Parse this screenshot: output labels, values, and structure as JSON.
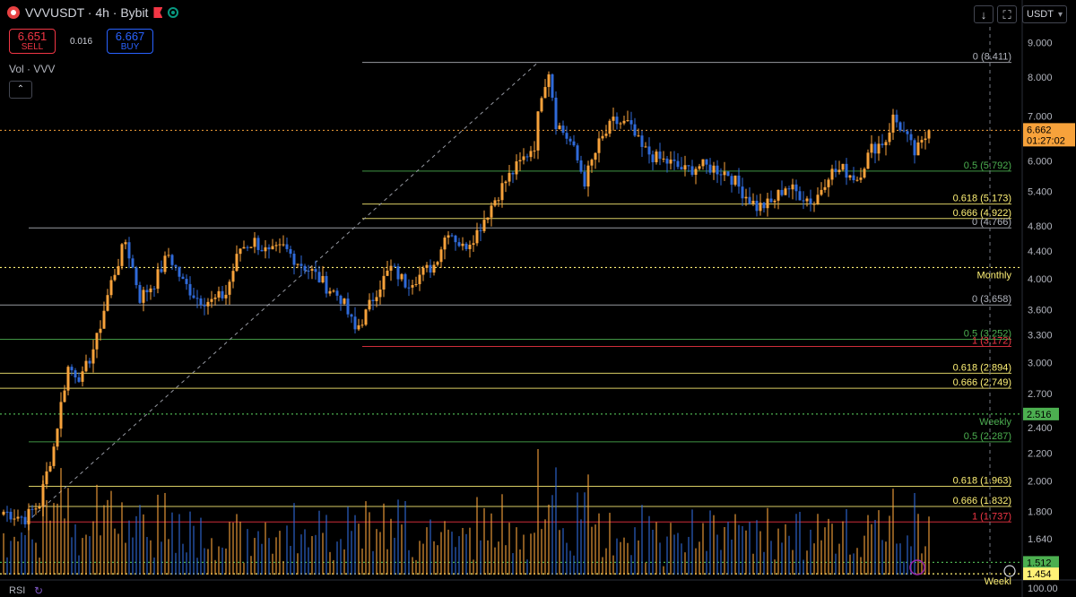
{
  "header": {
    "symbol": "VVVUSDT",
    "interval": "4h",
    "exchange": "Bybit",
    "title": "VVVUSDT · 4h · Bybit"
  },
  "trade": {
    "sell_price": "6.651",
    "sell_label": "SELL",
    "spread": "0.016",
    "buy_price": "6.667",
    "buy_label": "BUY"
  },
  "volume_label": "Vol · VVV",
  "collapse_glyph": "⌃",
  "toolbar": {
    "download_glyph": "↓",
    "fullscreen_glyph": "⛶",
    "currency": "USDT"
  },
  "rsi_label": "RSI",
  "colors": {
    "up": "#f7a23b",
    "down": "#2f6ad9",
    "bg": "#000000"
  },
  "chart_data": {
    "type": "candlestick",
    "log_scale": true,
    "y_range": [
      1.45,
      9.1
    ],
    "price_ticks": [
      9.0,
      8.0,
      7.0,
      6.0,
      5.4,
      4.8,
      4.4,
      4.0,
      3.6,
      3.3,
      3.0,
      2.7,
      2.4,
      2.2,
      2.0,
      1.8,
      1.64
    ],
    "price_tick_labels": [
      "9.000",
      "8.000",
      "7.000",
      "6.000",
      "5.400",
      "4.800",
      "4.400",
      "4.000",
      "3.600",
      "3.300",
      "3.000",
      "2.700",
      "2.400",
      "2.200",
      "2.000",
      "1.800",
      "1.640"
    ],
    "last_price": {
      "value": 6.662,
      "label": "6.662",
      "countdown": "01:27:02"
    },
    "fib_levels": [
      {
        "value": 8.411,
        "label": "0 (8.411)",
        "color": "#b2b5be",
        "set": "top"
      },
      {
        "value": 5.792,
        "label": "0.5 (5.792)",
        "color": "#4caf50",
        "set": "top"
      },
      {
        "value": 5.173,
        "label": "0.618 (5.173)",
        "color": "#fff176",
        "set": "top"
      },
      {
        "value": 4.922,
        "label": "0.666 (4.922)",
        "color": "#fff176",
        "set": "top"
      },
      {
        "value": 4.766,
        "label": "0 (4.766)",
        "color": "#b2b5be",
        "set": "upper"
      },
      {
        "value": 3.658,
        "label": "0 (3.658)",
        "color": "#b2b5be",
        "set": "mid"
      },
      {
        "value": 3.252,
        "label": "0.5 (3.252)",
        "color": "#4caf50",
        "set": "mid"
      },
      {
        "value": 3.172,
        "label": "1 (3.172)",
        "color": "#f23645",
        "set": "top"
      },
      {
        "value": 2.894,
        "label": "0.618 (2.894)",
        "color": "#fff176",
        "set": "mid"
      },
      {
        "value": 2.749,
        "label": "0.666 (2.749)",
        "color": "#fff176",
        "set": "mid"
      },
      {
        "value": 2.287,
        "label": "0.5 (2.287)",
        "color": "#4caf50",
        "set": "low"
      },
      {
        "value": 1.963,
        "label": "0.618 (1.963)",
        "color": "#fff176",
        "set": "low"
      },
      {
        "value": 1.832,
        "label": "0.666 (1.832)",
        "color": "#fff176",
        "set": "low"
      },
      {
        "value": 1.737,
        "label": "1 (1.737)",
        "color": "#f23645",
        "set": "low"
      }
    ],
    "horizontal_markers": [
      {
        "value": 4.16,
        "label": "Monthly",
        "color": "#fff176",
        "axis_label": ""
      },
      {
        "value": 2.516,
        "label": "Weekly",
        "color": "#4caf50",
        "axis_label": "2.516"
      },
      {
        "value": 1.512,
        "label": "",
        "color": "#4caf50",
        "axis_label": "1.512"
      },
      {
        "value": 1.454,
        "label": "Weekl",
        "color": "#fff176",
        "axis_label": "1.454"
      }
    ],
    "rsi_axis_value": "100.00",
    "keypoints": [
      [
        0,
        1.8
      ],
      [
        6,
        1.76
      ],
      [
        10,
        1.85
      ],
      [
        14,
        2.25
      ],
      [
        18,
        2.95
      ],
      [
        22,
        2.85
      ],
      [
        26,
        3.25
      ],
      [
        30,
        3.95
      ],
      [
        34,
        4.55
      ],
      [
        38,
        3.75
      ],
      [
        42,
        3.95
      ],
      [
        46,
        4.35
      ],
      [
        50,
        3.95
      ],
      [
        54,
        3.75
      ],
      [
        58,
        3.7
      ],
      [
        62,
        3.8
      ],
      [
        66,
        4.45
      ],
      [
        70,
        4.55
      ],
      [
        74,
        4.35
      ],
      [
        78,
        4.45
      ],
      [
        82,
        4.25
      ],
      [
        86,
        4.1
      ],
      [
        90,
        3.9
      ],
      [
        94,
        3.75
      ],
      [
        98,
        3.35
      ],
      [
        101,
        3.55
      ],
      [
        104,
        3.85
      ],
      [
        108,
        4.15
      ],
      [
        112,
        3.95
      ],
      [
        116,
        4.05
      ],
      [
        120,
        4.2
      ],
      [
        124,
        4.75
      ],
      [
        128,
        4.45
      ],
      [
        132,
        4.7
      ],
      [
        136,
        5.15
      ],
      [
        140,
        5.6
      ],
      [
        144,
        5.95
      ],
      [
        148,
        6.35
      ],
      [
        150,
        7.6
      ],
      [
        152,
        8.2
      ],
      [
        154,
        6.85
      ],
      [
        158,
        6.4
      ],
      [
        162,
        5.6
      ],
      [
        166,
        6.35
      ],
      [
        170,
        6.85
      ],
      [
        174,
        6.8
      ],
      [
        178,
        6.25
      ],
      [
        182,
        6.05
      ],
      [
        186,
        5.95
      ],
      [
        190,
        5.8
      ],
      [
        194,
        5.9
      ],
      [
        198,
        5.85
      ],
      [
        202,
        5.75
      ],
      [
        206,
        5.4
      ],
      [
        210,
        5.12
      ],
      [
        214,
        5.18
      ],
      [
        218,
        5.5
      ],
      [
        222,
        5.35
      ],
      [
        226,
        5.2
      ],
      [
        230,
        5.75
      ],
      [
        234,
        5.82
      ],
      [
        238,
        5.65
      ],
      [
        242,
        6.25
      ],
      [
        246,
        6.45
      ],
      [
        248,
        6.95
      ],
      [
        250,
        6.75
      ],
      [
        254,
        6.15
      ],
      [
        256,
        6.35
      ],
      [
        258,
        6.66
      ]
    ]
  }
}
